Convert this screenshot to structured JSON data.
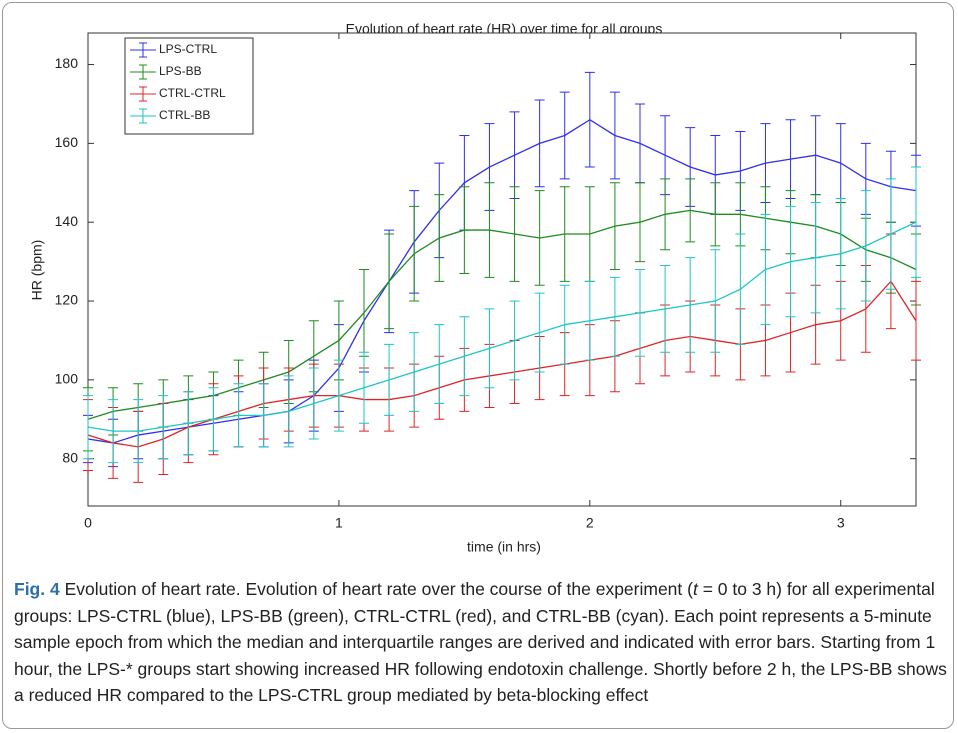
{
  "chart_data": {
    "type": "line",
    "title": "Evolution of heart rate (HR) over time for all groups",
    "x_label": "time (in hrs)",
    "y_label": "HR (bpm)",
    "x": [
      0,
      0.1,
      0.2,
      0.3,
      0.4,
      0.5,
      0.6,
      0.7,
      0.8,
      0.9,
      1.0,
      1.1,
      1.2,
      1.3,
      1.4,
      1.5,
      1.6,
      1.7,
      1.8,
      1.9,
      2.0,
      2.1,
      2.2,
      2.3,
      2.4,
      2.5,
      2.6,
      2.7,
      2.8,
      2.9,
      3.0,
      3.1,
      3.2,
      3.3
    ],
    "series": [
      {
        "name": "LPS-CTRL",
        "color": "#2f2ff0",
        "values": [
          85,
          84,
          86,
          87,
          88,
          89,
          90,
          91,
          92,
          96,
          103,
          115,
          125,
          135,
          143,
          150,
          154,
          157,
          160,
          162,
          166,
          162,
          160,
          157,
          154,
          152,
          153,
          155,
          156,
          157,
          155,
          151,
          149,
          148
        ],
        "errors": [
          6,
          6,
          6,
          7,
          7,
          7,
          7,
          8,
          8,
          9,
          11,
          13,
          13,
          13,
          12,
          12,
          11,
          11,
          11,
          11,
          12,
          11,
          10,
          10,
          10,
          10,
          10,
          10,
          10,
          10,
          10,
          9,
          9,
          9
        ]
      },
      {
        "name": "LPS-BB",
        "color": "#1e8c1e",
        "values": [
          90,
          92,
          93,
          94,
          95,
          96,
          98,
          100,
          102,
          106,
          110,
          117,
          125,
          132,
          136,
          138,
          138,
          137,
          136,
          137,
          137,
          139,
          140,
          142,
          143,
          142,
          142,
          141,
          140,
          139,
          137,
          133,
          131,
          128
        ],
        "errors": [
          8,
          6,
          6,
          6,
          6,
          6,
          7,
          7,
          8,
          9,
          10,
          11,
          12,
          12,
          11,
          11,
          12,
          12,
          12,
          12,
          12,
          11,
          10,
          9,
          8,
          8,
          8,
          8,
          8,
          8,
          8,
          8,
          9,
          9
        ]
      },
      {
        "name": "CTRL-CTRL",
        "color": "#e02424",
        "values": [
          86,
          84,
          83,
          85,
          88,
          90,
          92,
          94,
          95,
          96,
          96,
          95,
          95,
          96,
          98,
          100,
          101,
          102,
          103,
          104,
          105,
          106,
          108,
          110,
          111,
          110,
          109,
          110,
          112,
          114,
          115,
          118,
          125,
          115
        ],
        "errors": [
          9,
          9,
          9,
          9,
          9,
          9,
          9,
          9,
          8,
          8,
          8,
          8,
          8,
          8,
          8,
          8,
          8,
          8,
          8,
          8,
          9,
          9,
          9,
          9,
          9,
          9,
          9,
          9,
          10,
          10,
          10,
          11,
          12,
          10
        ]
      },
      {
        "name": "CTRL-BB",
        "color": "#1fc6c6",
        "values": [
          88,
          87,
          87,
          88,
          89,
          90,
          91,
          91,
          92,
          94,
          96,
          98,
          100,
          102,
          104,
          106,
          108,
          110,
          112,
          114,
          115,
          116,
          117,
          118,
          119,
          120,
          123,
          128,
          130,
          131,
          132,
          134,
          137,
          140
        ],
        "errors": [
          8,
          8,
          8,
          8,
          8,
          8,
          8,
          8,
          9,
          9,
          9,
          9,
          9,
          10,
          10,
          10,
          10,
          10,
          10,
          10,
          10,
          10,
          11,
          11,
          12,
          13,
          14,
          14,
          14,
          14,
          14,
          14,
          14,
          14
        ]
      }
    ],
    "xlim": [
      0,
      3.3
    ],
    "xticks": [
      0,
      1,
      2,
      3
    ],
    "ylim": [
      68,
      188
    ],
    "yticks": [
      80,
      100,
      120,
      140,
      160,
      180
    ],
    "legend": "upper left",
    "grid": false
  },
  "caption": {
    "label": "Fig. 4",
    "text_before": " Evolution of heart rate. Evolution of heart rate over the course of the experiment (",
    "italic": "t",
    "text_after": " = 0 to 3 h) for all experimental groups: LPS-CTRL (blue), LPS-BB (green), CTRL-CTRL (red), and CTRL-BB (cyan). Each point represents a 5-minute sample epoch from which the median and interquartile ranges are derived and indicated with error bars. Starting from 1 hour, the LPS-* groups start showing increased HR following endotoxin challenge. Shortly before 2 h, the LPS-BB shows a reduced HR compared to the LPS-CTRL group mediated by beta-blocking effect"
  }
}
